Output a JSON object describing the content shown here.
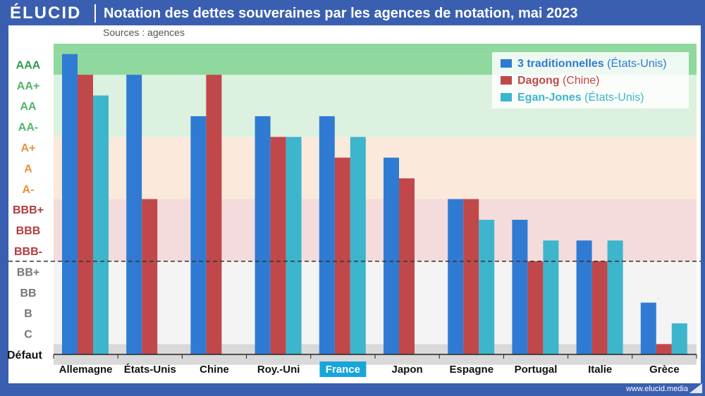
{
  "header": {
    "logo": "ÉLUCID",
    "title": "Notation des dettes souveraines par les agences de notation, mai 2023",
    "source": "Sources : agences"
  },
  "footer": {
    "url": "www.elucid.media"
  },
  "legend": {
    "items": [
      {
        "name": "3 traditionnelles",
        "origin": "(États-Unis)",
        "color": "#2f7bd3"
      },
      {
        "name": "Dagong",
        "origin": "(Chine)",
        "color": "#c0484b"
      },
      {
        "name": "Egan-Jones",
        "origin": "(États-Unis)",
        "color": "#3db5cc"
      }
    ]
  },
  "chart_data": {
    "type": "bar",
    "title": "Notation des dettes souveraines par les agences de notation, mai 2023",
    "categories": [
      "Allemagne",
      "États-Unis",
      "Chine",
      "Roy.-Uni",
      "France",
      "Japon",
      "Espagne",
      "Portugal",
      "Italie",
      "Grèce"
    ],
    "highlight_category": "France",
    "y_scale": [
      "Défaut",
      "C",
      "B",
      "BB",
      "BB+",
      "BBB-",
      "BBB",
      "BBB+",
      "A-",
      "A",
      "A+",
      "AA-",
      "AA",
      "AA+",
      "AAA"
    ],
    "y_label_colors": {
      "Défaut": "#111111",
      "C": "#777777",
      "B": "#777777",
      "BB": "#777777",
      "BB+": "#777777",
      "BBB-": "#b23a3f",
      "BBB": "#b23a3f",
      "BBB+": "#b23a3f",
      "A-": "#e8923a",
      "A": "#e8923a",
      "A+": "#e8923a",
      "AA-": "#52b56a",
      "AA": "#52b56a",
      "AA+": "#52b56a",
      "AAA": "#2e9e4f"
    },
    "bands": [
      {
        "from": "Défaut",
        "to": "Défaut",
        "color": "#d9d9d9"
      },
      {
        "from": "C",
        "to": "BB+",
        "color": "#f4f4f4"
      },
      {
        "from": "BBB-",
        "to": "BBB+",
        "color": "#f4dcdc"
      },
      {
        "from": "A-",
        "to": "A+",
        "color": "#fbe9db"
      },
      {
        "from": "AA-",
        "to": "AA+",
        "color": "#dcf1df"
      },
      {
        "from": "AAA",
        "to": "AAA",
        "color": "#8fd89e"
      }
    ],
    "investment_grade_threshold": "between BB+ and BBB-",
    "series": [
      {
        "name": "3 traditionnelles",
        "color": "#2f7bd3",
        "values": [
          "AAA",
          "AA+",
          "AA-",
          "AA-",
          "AA-",
          "A",
          "BBB+",
          "BBB",
          "BBB-",
          "B"
        ]
      },
      {
        "name": "Dagong",
        "color": "#c0484b",
        "values": [
          "AA+",
          "BBB+",
          "AA+",
          "A+",
          "A",
          "A-",
          "BBB+",
          "BB+",
          "BB+",
          "Défaut"
        ]
      },
      {
        "name": "Egan-Jones",
        "color": "#3db5cc",
        "values": [
          "AA",
          null,
          null,
          "A+",
          "A+",
          null,
          "BBB",
          "BBB-",
          "BBB-",
          "C"
        ]
      }
    ],
    "grid": false,
    "legend_position": "top-right"
  }
}
